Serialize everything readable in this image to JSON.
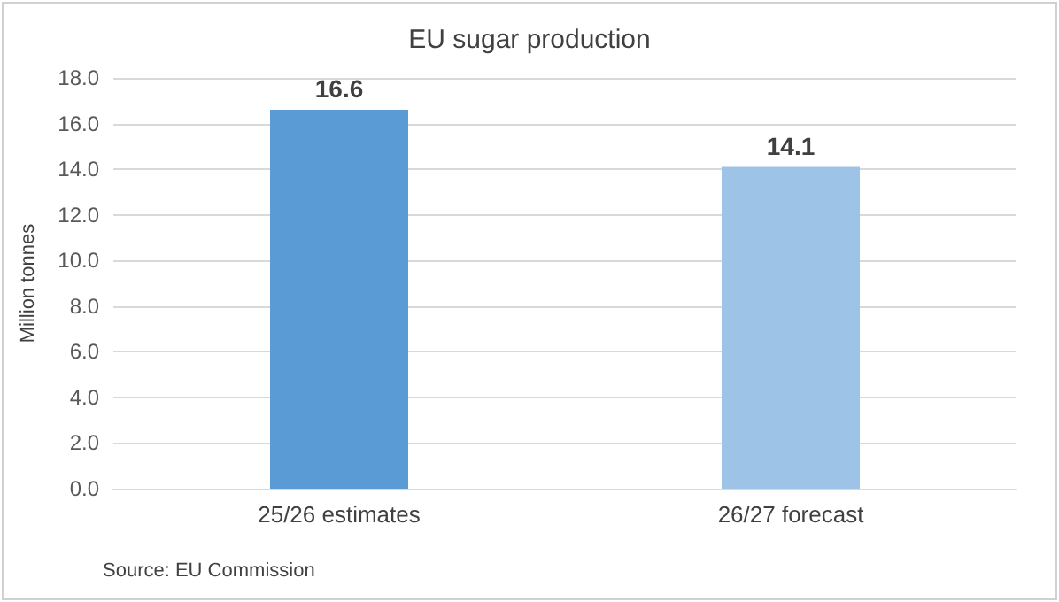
{
  "chart_data": {
    "type": "bar",
    "title": "EU sugar production",
    "ylabel": "Million tonnes",
    "categories": [
      "25/26 estimates",
      "26/27 forecast"
    ],
    "values": [
      16.6,
      14.1
    ],
    "colors": [
      "#5b9bd5",
      "#9dc3e6"
    ],
    "ylim": [
      0,
      18
    ],
    "yticks": [
      {
        "value": 0,
        "label": "0.0"
      },
      {
        "value": 2,
        "label": "2.0"
      },
      {
        "value": 4,
        "label": "4.0"
      },
      {
        "value": 6,
        "label": "6.0"
      },
      {
        "value": 8,
        "label": "8.0"
      },
      {
        "value": 10,
        "label": "10.0"
      },
      {
        "value": 12,
        "label": "12.0"
      },
      {
        "value": 14,
        "label": "14.0"
      },
      {
        "value": 16,
        "label": "16.0"
      },
      {
        "value": 18,
        "label": "18.0"
      }
    ],
    "grid": "y",
    "data_labels": true,
    "annotations": [
      "Source: EU Commission"
    ]
  }
}
